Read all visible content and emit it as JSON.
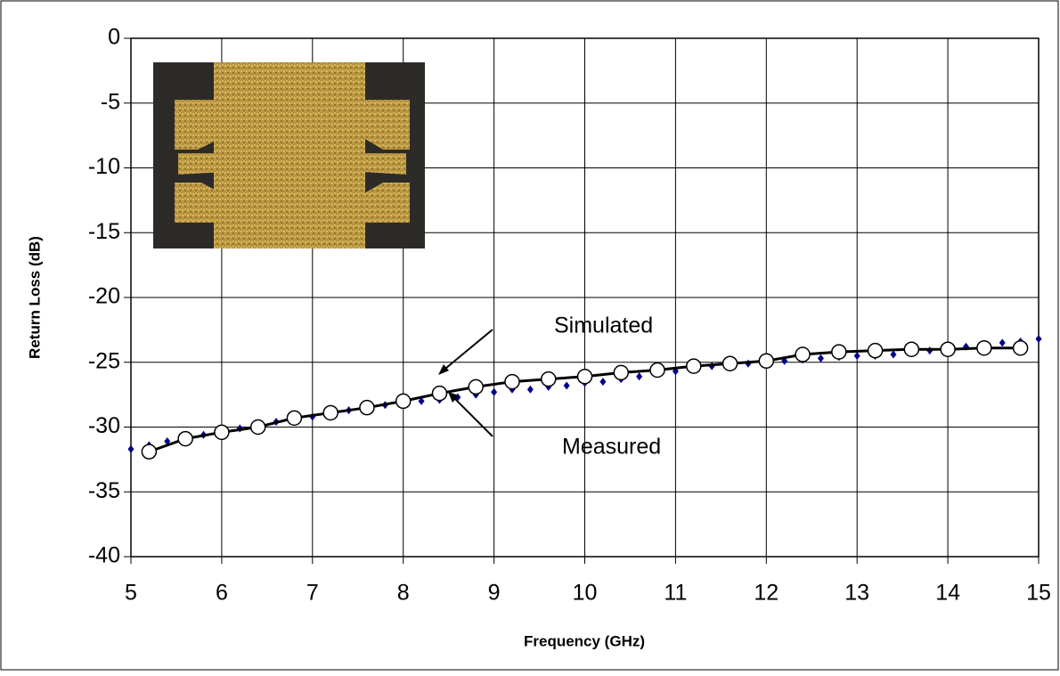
{
  "chart_data": {
    "type": "line",
    "xlabel": "Frequency (GHz)",
    "ylabel": "Return Loss (dB)",
    "xlim": [
      5,
      15
    ],
    "xticks": [
      5,
      6,
      7,
      8,
      9,
      10,
      11,
      12,
      13,
      14,
      15
    ],
    "ylim": [
      -40,
      0
    ],
    "yticks": [
      -40,
      -35,
      -30,
      -25,
      -20,
      -15,
      -10,
      -5,
      0
    ],
    "grid": true,
    "series": [
      {
        "name": "Simulated",
        "color": "#000000",
        "x": [
          5.2,
          5.6,
          6.0,
          6.4,
          6.8,
          7.2,
          7.6,
          8.0,
          8.4,
          8.8,
          9.2,
          9.6,
          10.0,
          10.4,
          10.8,
          11.2,
          11.6,
          12.0,
          12.4,
          12.8,
          13.2,
          13.6,
          14.0,
          14.4,
          14.8
        ],
        "values": [
          -31.9,
          -30.9,
          -30.4,
          -30.0,
          -29.3,
          -28.9,
          -28.5,
          -28.0,
          -27.4,
          -26.9,
          -26.5,
          -26.3,
          -26.1,
          -25.8,
          -25.6,
          -25.3,
          -25.1,
          -24.9,
          -24.4,
          -24.2,
          -24.1,
          -24.0,
          -24.0,
          -23.9,
          -23.9
        ]
      },
      {
        "name": "Measured",
        "color": "#00008b",
        "x": [
          5.0,
          5.2,
          5.4,
          5.6,
          5.8,
          6.0,
          6.2,
          6.4,
          6.6,
          6.8,
          7.0,
          7.2,
          7.4,
          7.6,
          7.8,
          8.0,
          8.2,
          8.4,
          8.6,
          8.8,
          9.0,
          9.2,
          9.4,
          9.6,
          9.8,
          10.0,
          10.2,
          10.4,
          10.6,
          10.8,
          11.0,
          11.2,
          11.4,
          11.6,
          11.8,
          12.0,
          12.2,
          12.4,
          12.6,
          12.8,
          13.0,
          13.2,
          13.4,
          13.6,
          13.8,
          14.0,
          14.2,
          14.4,
          14.6,
          14.8,
          15.0
        ],
        "values": [
          -31.7,
          -31.4,
          -31.1,
          -30.8,
          -30.6,
          -30.3,
          -30.1,
          -29.9,
          -29.6,
          -29.4,
          -29.2,
          -28.9,
          -28.7,
          -28.5,
          -28.3,
          -28.1,
          -28.0,
          -27.9,
          -27.7,
          -27.5,
          -27.3,
          -27.1,
          -27.1,
          -26.9,
          -26.8,
          -26.6,
          -26.5,
          -26.3,
          -26.1,
          -25.9,
          -25.7,
          -25.5,
          -25.3,
          -25.2,
          -25.1,
          -25.0,
          -24.9,
          -24.8,
          -24.7,
          -24.6,
          -24.5,
          -24.5,
          -24.4,
          -24.2,
          -24.1,
          -23.9,
          -23.8,
          -23.7,
          -23.5,
          -23.4,
          -23.2
        ]
      }
    ]
  }
}
